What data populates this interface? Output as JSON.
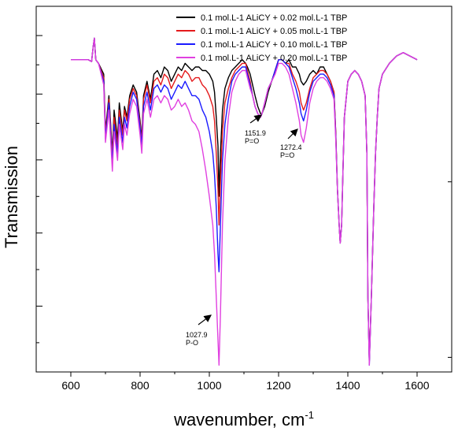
{
  "chart_data": {
    "type": "line",
    "xlabel": "wavenumber, cm",
    "xlabel_superscript": "-1",
    "ylabel": "Transmission",
    "xlim": [
      500,
      1700
    ],
    "ylim": [
      0,
      1
    ],
    "x_ticks": [
      600,
      800,
      1000,
      1200,
      1400,
      1600
    ],
    "y_ticks_shown": false,
    "grid": false,
    "legend_position": "top-right",
    "series": [
      {
        "name": "0.1 mol.L-1 ALiCY + 0.02 mol.L-1 TBP",
        "color": "#000000",
        "x": [
          600,
          640,
          650,
          660,
          665,
          668,
          672,
          680,
          695,
          700,
          710,
          720,
          725,
          735,
          740,
          750,
          755,
          762,
          770,
          780,
          790,
          800,
          805,
          810,
          820,
          830,
          840,
          850,
          860,
          870,
          880,
          890,
          900,
          910,
          920,
          930,
          940,
          950,
          960,
          970,
          980,
          990,
          1000,
          1010,
          1015,
          1020,
          1025,
          1028,
          1032,
          1038,
          1045,
          1055,
          1065,
          1075,
          1085,
          1095,
          1105,
          1110,
          1118,
          1125,
          1132,
          1140,
          1148,
          1152,
          1160,
          1170,
          1180,
          1190,
          1200,
          1210,
          1220,
          1230,
          1240,
          1250,
          1260,
          1265,
          1272,
          1280,
          1290,
          1300,
          1310,
          1320,
          1330,
          1340,
          1350,
          1360,
          1365,
          1370,
          1375,
          1378,
          1382,
          1386,
          1390,
          1400,
          1410,
          1420,
          1430,
          1440,
          1450,
          1455,
          1458,
          1462,
          1468,
          1475,
          1480,
          1485,
          1490,
          1500,
          1520,
          1540,
          1560,
          1580,
          1600
        ],
        "y": [
          0.86,
          0.86,
          0.86,
          0.855,
          0.9,
          0.92,
          0.86,
          0.85,
          0.82,
          0.66,
          0.76,
          0.6,
          0.72,
          0.64,
          0.74,
          0.66,
          0.73,
          0.7,
          0.76,
          0.79,
          0.77,
          0.69,
          0.64,
          0.76,
          0.8,
          0.75,
          0.82,
          0.83,
          0.81,
          0.84,
          0.83,
          0.8,
          0.82,
          0.84,
          0.83,
          0.85,
          0.84,
          0.83,
          0.84,
          0.84,
          0.83,
          0.83,
          0.82,
          0.8,
          0.77,
          0.7,
          0.62,
          0.48,
          0.6,
          0.72,
          0.78,
          0.81,
          0.83,
          0.84,
          0.85,
          0.86,
          0.85,
          0.84,
          0.82,
          0.79,
          0.76,
          0.73,
          0.71,
          0.71,
          0.73,
          0.77,
          0.8,
          0.83,
          0.86,
          0.86,
          0.85,
          0.86,
          0.84,
          0.84,
          0.82,
          0.8,
          0.79,
          0.8,
          0.82,
          0.83,
          0.82,
          0.84,
          0.84,
          0.82,
          0.8,
          0.77,
          0.66,
          0.5,
          0.4,
          0.35,
          0.4,
          0.55,
          0.7,
          0.8,
          0.82,
          0.83,
          0.82,
          0.8,
          0.76,
          0.6,
          0.2,
          0.02,
          0.2,
          0.45,
          0.6,
          0.7,
          0.78,
          0.82,
          0.85,
          0.87,
          0.88,
          0.87,
          0.86
        ]
      },
      {
        "name": "0.1 mol.L-1 ALiCY + 0.05 mol.L-1 TBP",
        "color": "#e41a1c",
        "x": [
          600,
          640,
          650,
          660,
          665,
          668,
          672,
          680,
          695,
          700,
          710,
          720,
          725,
          735,
          740,
          750,
          755,
          762,
          770,
          780,
          790,
          800,
          805,
          810,
          820,
          830,
          840,
          850,
          860,
          870,
          880,
          890,
          900,
          910,
          920,
          930,
          940,
          950,
          960,
          970,
          980,
          990,
          1000,
          1010,
          1015,
          1020,
          1025,
          1028,
          1032,
          1038,
          1045,
          1055,
          1065,
          1075,
          1085,
          1095,
          1105,
          1110,
          1118,
          1125,
          1132,
          1140,
          1148,
          1152,
          1160,
          1170,
          1180,
          1190,
          1200,
          1210,
          1220,
          1230,
          1240,
          1250,
          1260,
          1265,
          1272,
          1280,
          1290,
          1300,
          1310,
          1320,
          1330,
          1340,
          1350,
          1360,
          1365,
          1370,
          1375,
          1378,
          1382,
          1386,
          1390,
          1400,
          1410,
          1420,
          1430,
          1440,
          1450,
          1455,
          1458,
          1462,
          1468,
          1475,
          1480,
          1485,
          1490,
          1500,
          1520,
          1540,
          1560,
          1580,
          1600
        ],
        "y": [
          0.86,
          0.86,
          0.86,
          0.855,
          0.9,
          0.92,
          0.86,
          0.85,
          0.81,
          0.65,
          0.75,
          0.59,
          0.7,
          0.62,
          0.72,
          0.65,
          0.72,
          0.69,
          0.75,
          0.78,
          0.76,
          0.68,
          0.63,
          0.75,
          0.79,
          0.74,
          0.8,
          0.81,
          0.79,
          0.82,
          0.81,
          0.78,
          0.8,
          0.82,
          0.81,
          0.83,
          0.82,
          0.8,
          0.81,
          0.81,
          0.79,
          0.78,
          0.76,
          0.73,
          0.69,
          0.6,
          0.5,
          0.4,
          0.52,
          0.66,
          0.74,
          0.78,
          0.81,
          0.83,
          0.84,
          0.85,
          0.85,
          0.83,
          0.8,
          0.76,
          0.73,
          0.71,
          0.7,
          0.71,
          0.74,
          0.78,
          0.8,
          0.83,
          0.86,
          0.86,
          0.85,
          0.85,
          0.82,
          0.8,
          0.77,
          0.74,
          0.72,
          0.74,
          0.78,
          0.81,
          0.82,
          0.83,
          0.83,
          0.82,
          0.8,
          0.77,
          0.66,
          0.5,
          0.4,
          0.35,
          0.4,
          0.55,
          0.7,
          0.8,
          0.82,
          0.83,
          0.82,
          0.8,
          0.76,
          0.6,
          0.2,
          0.02,
          0.2,
          0.45,
          0.6,
          0.7,
          0.78,
          0.82,
          0.85,
          0.87,
          0.88,
          0.87,
          0.86
        ]
      },
      {
        "name": "0.1 mol.L-1 ALiCY + 0.10 mol.L-1 TBP",
        "color": "#1a1aff",
        "x": [
          600,
          640,
          650,
          660,
          665,
          668,
          672,
          680,
          695,
          700,
          710,
          720,
          725,
          735,
          740,
          750,
          755,
          762,
          770,
          780,
          790,
          800,
          805,
          810,
          820,
          830,
          840,
          850,
          860,
          870,
          880,
          890,
          900,
          910,
          920,
          930,
          940,
          950,
          960,
          970,
          980,
          990,
          1000,
          1010,
          1015,
          1020,
          1025,
          1028,
          1032,
          1038,
          1045,
          1055,
          1065,
          1075,
          1085,
          1095,
          1105,
          1110,
          1118,
          1125,
          1132,
          1140,
          1148,
          1152,
          1160,
          1170,
          1180,
          1190,
          1200,
          1210,
          1220,
          1230,
          1240,
          1250,
          1260,
          1265,
          1272,
          1280,
          1290,
          1300,
          1310,
          1320,
          1330,
          1340,
          1350,
          1360,
          1365,
          1370,
          1375,
          1378,
          1382,
          1386,
          1390,
          1400,
          1410,
          1420,
          1430,
          1440,
          1450,
          1455,
          1458,
          1462,
          1468,
          1475,
          1480,
          1485,
          1490,
          1500,
          1520,
          1540,
          1560,
          1580,
          1600
        ],
        "y": [
          0.86,
          0.86,
          0.86,
          0.855,
          0.9,
          0.92,
          0.86,
          0.85,
          0.8,
          0.64,
          0.74,
          0.57,
          0.68,
          0.6,
          0.7,
          0.63,
          0.7,
          0.67,
          0.73,
          0.77,
          0.75,
          0.67,
          0.62,
          0.73,
          0.77,
          0.72,
          0.78,
          0.79,
          0.77,
          0.79,
          0.78,
          0.75,
          0.77,
          0.79,
          0.78,
          0.8,
          0.78,
          0.76,
          0.76,
          0.75,
          0.72,
          0.7,
          0.66,
          0.6,
          0.54,
          0.45,
          0.32,
          0.27,
          0.4,
          0.58,
          0.68,
          0.75,
          0.8,
          0.82,
          0.83,
          0.84,
          0.84,
          0.82,
          0.79,
          0.76,
          0.73,
          0.71,
          0.7,
          0.71,
          0.74,
          0.78,
          0.8,
          0.83,
          0.86,
          0.86,
          0.85,
          0.84,
          0.81,
          0.78,
          0.74,
          0.71,
          0.69,
          0.72,
          0.77,
          0.8,
          0.81,
          0.82,
          0.82,
          0.81,
          0.79,
          0.76,
          0.65,
          0.5,
          0.4,
          0.35,
          0.4,
          0.55,
          0.7,
          0.8,
          0.82,
          0.83,
          0.82,
          0.8,
          0.76,
          0.6,
          0.2,
          0.01,
          0.2,
          0.45,
          0.6,
          0.7,
          0.78,
          0.82,
          0.85,
          0.87,
          0.88,
          0.87,
          0.86
        ]
      },
      {
        "name": "0.1 mol.L-1 ALiCY + 0.20 mol.L-1 TBP",
        "color": "#e040e0",
        "x": [
          600,
          640,
          650,
          660,
          665,
          668,
          672,
          680,
          695,
          700,
          710,
          720,
          725,
          735,
          740,
          750,
          755,
          762,
          770,
          780,
          790,
          800,
          805,
          810,
          820,
          830,
          840,
          850,
          860,
          870,
          880,
          890,
          900,
          910,
          920,
          930,
          940,
          950,
          960,
          970,
          980,
          990,
          1000,
          1010,
          1015,
          1020,
          1025,
          1028,
          1032,
          1038,
          1045,
          1055,
          1065,
          1075,
          1085,
          1095,
          1105,
          1110,
          1118,
          1125,
          1132,
          1140,
          1148,
          1152,
          1160,
          1170,
          1180,
          1190,
          1200,
          1210,
          1220,
          1230,
          1240,
          1250,
          1260,
          1265,
          1272,
          1280,
          1290,
          1300,
          1310,
          1320,
          1330,
          1340,
          1350,
          1360,
          1365,
          1370,
          1375,
          1378,
          1382,
          1386,
          1390,
          1400,
          1410,
          1420,
          1430,
          1440,
          1450,
          1455,
          1458,
          1462,
          1468,
          1475,
          1480,
          1485,
          1490,
          1500,
          1520,
          1540,
          1560,
          1580,
          1600
        ],
        "y": [
          0.86,
          0.86,
          0.86,
          0.855,
          0.9,
          0.92,
          0.86,
          0.85,
          0.79,
          0.63,
          0.72,
          0.55,
          0.66,
          0.58,
          0.68,
          0.61,
          0.68,
          0.65,
          0.71,
          0.75,
          0.73,
          0.65,
          0.6,
          0.71,
          0.75,
          0.7,
          0.75,
          0.76,
          0.74,
          0.76,
          0.75,
          0.72,
          0.73,
          0.75,
          0.73,
          0.74,
          0.72,
          0.69,
          0.68,
          0.66,
          0.61,
          0.55,
          0.48,
          0.4,
          0.32,
          0.2,
          0.08,
          0.01,
          0.15,
          0.4,
          0.58,
          0.7,
          0.77,
          0.8,
          0.82,
          0.83,
          0.83,
          0.81,
          0.78,
          0.76,
          0.73,
          0.71,
          0.7,
          0.71,
          0.74,
          0.78,
          0.8,
          0.82,
          0.85,
          0.85,
          0.84,
          0.82,
          0.78,
          0.74,
          0.69,
          0.65,
          0.63,
          0.67,
          0.74,
          0.78,
          0.8,
          0.81,
          0.81,
          0.8,
          0.78,
          0.75,
          0.64,
          0.5,
          0.4,
          0.35,
          0.4,
          0.55,
          0.7,
          0.8,
          0.82,
          0.83,
          0.82,
          0.8,
          0.76,
          0.6,
          0.2,
          0.01,
          0.2,
          0.45,
          0.6,
          0.7,
          0.78,
          0.82,
          0.85,
          0.87,
          0.88,
          0.87,
          0.86
        ]
      }
    ],
    "annotations": [
      {
        "text": "1151.9",
        "text2": "P=O",
        "x": 1152,
        "y": 0.71
      },
      {
        "text": "1272.4",
        "text2": "P=O",
        "x": 1272,
        "y": 0.63
      },
      {
        "text": "1027.9",
        "text2": "P-O",
        "x": 1028,
        "y": 0.01
      }
    ]
  }
}
